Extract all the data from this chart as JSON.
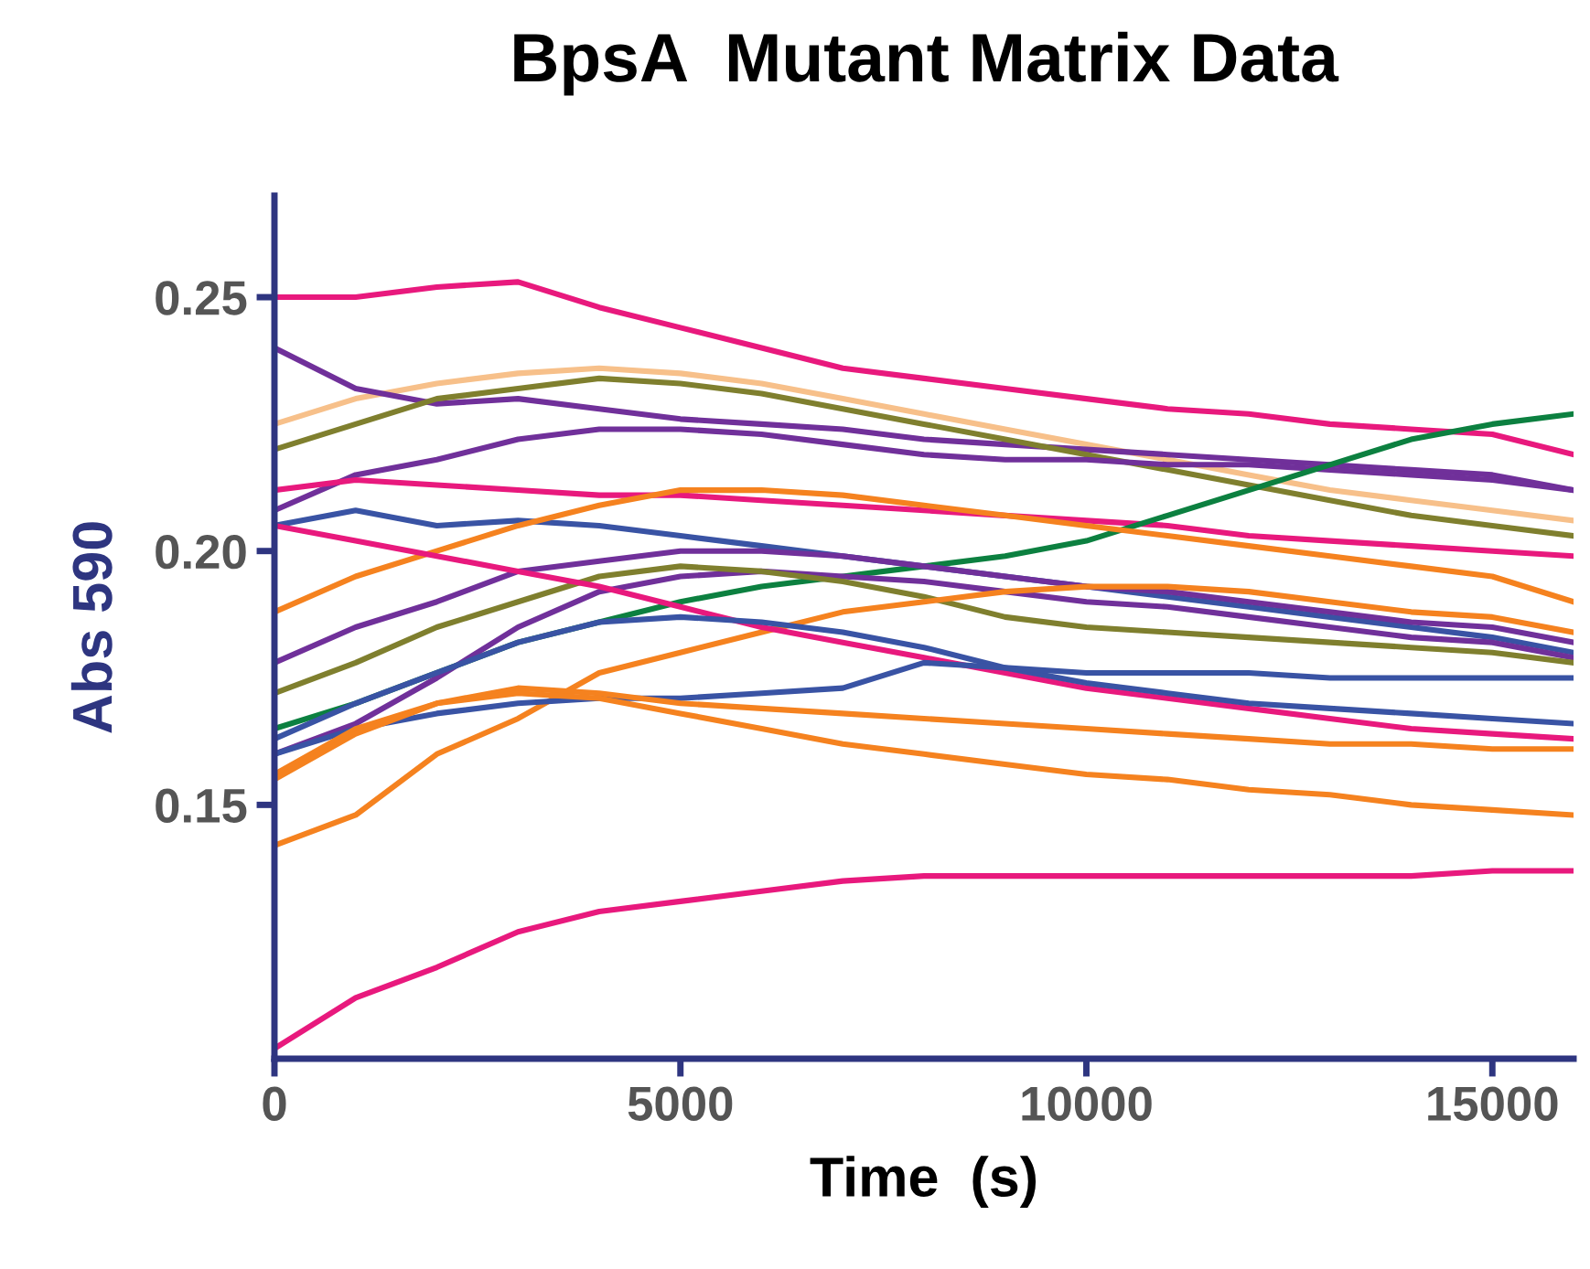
{
  "chart_data": {
    "type": "line",
    "title": "BpsA  Mutant Matrix Data",
    "xlabel": "Time  (s)",
    "ylabel": "Abs 590",
    "x": [
      0,
      1000,
      2000,
      3000,
      4000,
      5000,
      6000,
      7000,
      8000,
      9000,
      10000,
      11000,
      12000,
      13000,
      14000,
      15000,
      16000
    ],
    "xlim": [
      0,
      16000
    ],
    "ylim": [
      0.1,
      0.27
    ],
    "xticks": [
      0,
      5000,
      10000,
      15000
    ],
    "yticks": [
      0.15,
      {
        "value": 0.2,
        "label": "0.20"
      },
      0.25
    ],
    "grid": false,
    "marker": "none",
    "line_style": "solid",
    "series": [
      {
        "color": "#e8197d",
        "values": [
          0.25,
          0.25,
          0.252,
          0.253,
          0.248,
          0.244,
          0.24,
          0.236,
          0.234,
          0.232,
          0.23,
          0.228,
          0.227,
          0.225,
          0.224,
          0.223,
          0.219
        ]
      },
      {
        "color": "#f7c08a",
        "values": [
          0.225,
          0.23,
          0.233,
          0.235,
          0.236,
          0.235,
          0.233,
          0.23,
          0.227,
          0.224,
          0.221,
          0.218,
          0.215,
          0.212,
          0.21,
          0.208,
          0.206
        ]
      },
      {
        "color": "#70309a",
        "values": [
          0.24,
          0.232,
          0.229,
          0.23,
          0.228,
          0.226,
          0.225,
          0.224,
          0.222,
          0.221,
          0.22,
          0.219,
          0.218,
          0.217,
          0.216,
          0.215,
          0.212
        ]
      },
      {
        "color": "#7f7f2e",
        "values": [
          0.22,
          0.225,
          0.23,
          0.232,
          0.234,
          0.233,
          0.231,
          0.228,
          0.225,
          0.222,
          0.219,
          0.216,
          0.213,
          0.21,
          0.207,
          0.205,
          0.203
        ]
      },
      {
        "color": "#70309a",
        "values": [
          0.208,
          0.215,
          0.218,
          0.222,
          0.224,
          0.224,
          0.223,
          0.221,
          0.219,
          0.218,
          0.218,
          0.217,
          0.217,
          0.216,
          0.215,
          0.214,
          0.212
        ]
      },
      {
        "color": "#e8197d",
        "values": [
          0.212,
          0.214,
          0.213,
          0.212,
          0.211,
          0.211,
          0.21,
          0.209,
          0.208,
          0.207,
          0.206,
          0.205,
          0.203,
          0.202,
          0.201,
          0.2,
          0.199
        ]
      },
      {
        "color": "#0c8040",
        "values": [
          0.165,
          0.17,
          0.176,
          0.182,
          0.186,
          0.19,
          0.193,
          0.195,
          0.197,
          0.199,
          0.202,
          0.207,
          0.212,
          0.217,
          0.222,
          0.225,
          0.227
        ]
      },
      {
        "color": "#3953a4",
        "values": [
          0.205,
          0.208,
          0.205,
          0.206,
          0.205,
          0.203,
          0.201,
          0.199,
          0.197,
          0.195,
          0.193,
          0.191,
          0.189,
          0.187,
          0.185,
          0.183,
          0.18
        ]
      },
      {
        "color": "#f5821f",
        "values": [
          0.188,
          0.195,
          0.2,
          0.205,
          0.209,
          0.212,
          0.212,
          0.211,
          0.209,
          0.207,
          0.205,
          0.203,
          0.201,
          0.199,
          0.197,
          0.195,
          0.19
        ]
      },
      {
        "color": "#70309a",
        "values": [
          0.178,
          0.185,
          0.19,
          0.196,
          0.198,
          0.2,
          0.2,
          0.199,
          0.197,
          0.195,
          0.193,
          0.192,
          0.19,
          0.188,
          0.186,
          0.185,
          0.182
        ]
      },
      {
        "color": "#70309a",
        "values": [
          0.16,
          0.166,
          0.175,
          0.185,
          0.192,
          0.195,
          0.196,
          0.195,
          0.194,
          0.192,
          0.19,
          0.189,
          0.187,
          0.185,
          0.183,
          0.182,
          0.179
        ]
      },
      {
        "color": "#7f7f2e",
        "values": [
          0.172,
          0.178,
          0.185,
          0.19,
          0.195,
          0.197,
          0.196,
          0.194,
          0.191,
          0.187,
          0.185,
          0.184,
          0.183,
          0.182,
          0.181,
          0.18,
          0.178
        ]
      },
      {
        "color": "#f5821f",
        "values": [
          0.142,
          0.148,
          0.16,
          0.167,
          0.176,
          0.18,
          0.184,
          0.188,
          0.19,
          0.192,
          0.193,
          0.193,
          0.192,
          0.19,
          0.188,
          0.187,
          0.184
        ]
      },
      {
        "color": "#e8197d",
        "values": [
          0.205,
          0.202,
          0.199,
          0.196,
          0.193,
          0.189,
          0.185,
          0.182,
          0.179,
          0.176,
          0.173,
          0.171,
          0.169,
          0.167,
          0.165,
          0.164,
          0.163
        ]
      },
      {
        "color": "#3953a4",
        "values": [
          0.163,
          0.17,
          0.176,
          0.182,
          0.186,
          0.187,
          0.186,
          0.184,
          0.181,
          0.177,
          0.174,
          0.172,
          0.17,
          0.169,
          0.168,
          0.167,
          0.166
        ]
      },
      {
        "color": "#3953a4",
        "values": [
          0.16,
          0.165,
          0.168,
          0.17,
          0.171,
          0.171,
          0.172,
          0.173,
          0.178,
          0.177,
          0.176,
          0.176,
          0.176,
          0.175,
          0.175,
          0.175,
          0.175
        ]
      },
      {
        "color": "#f5821f",
        "values": [
          0.156,
          0.165,
          0.17,
          0.173,
          0.172,
          0.17,
          0.169,
          0.168,
          0.167,
          0.166,
          0.165,
          0.164,
          0.163,
          0.162,
          0.162,
          0.161,
          0.161
        ]
      },
      {
        "color": "#f5821f",
        "values": [
          0.155,
          0.164,
          0.17,
          0.172,
          0.171,
          0.168,
          0.165,
          0.162,
          0.16,
          0.158,
          0.156,
          0.155,
          0.153,
          0.152,
          0.15,
          0.149,
          0.148
        ]
      },
      {
        "color": "#e8197d",
        "values": [
          0.102,
          0.112,
          0.118,
          0.125,
          0.129,
          0.131,
          0.133,
          0.135,
          0.136,
          0.136,
          0.136,
          0.136,
          0.136,
          0.136,
          0.136,
          0.137,
          0.137
        ]
      }
    ]
  }
}
